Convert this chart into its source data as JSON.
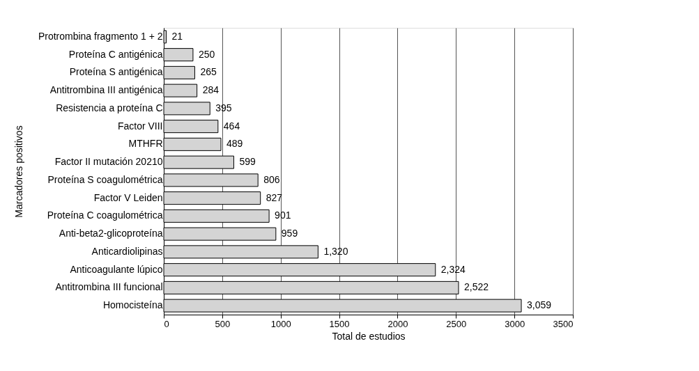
{
  "chart_data": {
    "type": "bar",
    "orientation": "horizontal",
    "xlabel": "Total de estudios",
    "ylabel": "Marcadores positivos",
    "categories": [
      "Protrombina fragmento 1 + 2",
      "Proteína C antigénica",
      "Proteína S antigénica",
      "Antitrombina III antigénica",
      "Resistencia a proteína C",
      "Factor VIII",
      "MTHFR",
      "Factor II mutación 20210",
      "Proteína S coagulométrica",
      "Factor V Leiden",
      "Proteína C coagulométrica",
      "Anti-beta2-glicoproteína",
      "Anticardiolipinas",
      "Anticoagulante lúpico",
      "Antitrombina III funcional",
      "Homocisteína"
    ],
    "values": [
      21,
      250,
      265,
      284,
      395,
      464,
      489,
      599,
      806,
      827,
      901,
      959,
      1320,
      2324,
      2522,
      3059
    ],
    "color": "#d4d4d4",
    "xlim": [
      0,
      3500
    ],
    "xticks": [
      0,
      500,
      1000,
      1500,
      2000,
      2500,
      3000,
      3500
    ],
    "value_labels": [
      "21",
      "250",
      "265",
      "284",
      "395",
      "464",
      "489",
      "599",
      "806",
      "827",
      "901",
      "959",
      "1,320",
      "2,324",
      "2,522",
      "3,059"
    ],
    "grid": "x"
  }
}
